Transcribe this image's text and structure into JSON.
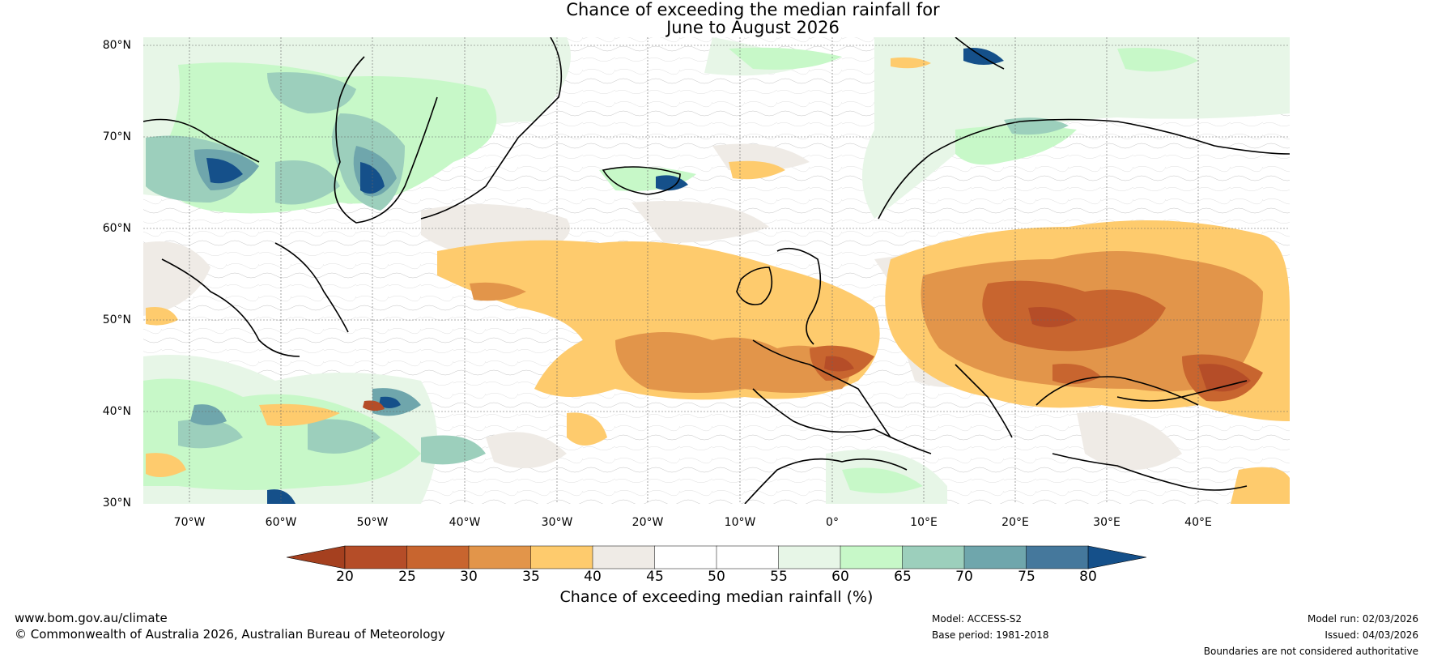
{
  "title": {
    "line1": "Chance of exceeding the median rainfall for",
    "line2": "June to August 2026"
  },
  "map": {
    "latitude_labels": [
      "80°N",
      "70°N",
      "60°N",
      "50°N",
      "40°N",
      "30°N"
    ],
    "longitude_labels": [
      "70°W",
      "60°W",
      "50°W",
      "40°W",
      "30°W",
      "20°W",
      "10°W",
      "0°",
      "10°E",
      "20°E",
      "30°E",
      "40°E"
    ],
    "extent": {
      "lon_min": -75,
      "lon_max": 50,
      "lat_min": 30,
      "lat_max": 81
    },
    "pattern_summary": "Below-median (orange/brown) across central & eastern Europe and mid-Atlantic; above-median (green/blue) over Greenland, Iceland and western North Atlantic"
  },
  "colorbar": {
    "ticks": [
      "20",
      "25",
      "30",
      "35",
      "40",
      "45",
      "50",
      "55",
      "60",
      "65",
      "70",
      "75",
      "80"
    ],
    "colors": [
      "#a5401f",
      "#b54d28",
      "#c8652f",
      "#e2954a",
      "#fecb6d",
      "#efebe6",
      "#ffffff",
      "#ffffff",
      "#e7f6e7",
      "#c7f8c8",
      "#9ccfbc",
      "#6fa6ac",
      "#45789c"
    ],
    "under_color": "#a5401f",
    "over_color": "#15508a",
    "label": "Chance of exceeding median rainfall (%)"
  },
  "footer": {
    "website": "www.bom.gov.au/climate",
    "copyright": "© Commonwealth of Australia 2026, Australian Bureau of Meteorology",
    "model": "Model: ACCESS-S2",
    "base_period": "Base period: 1981-2018",
    "model_run": "Model run: 02/03/2026",
    "issued": "Issued: 04/03/2026",
    "disclaimer": "Boundaries are not considered authoritative"
  }
}
